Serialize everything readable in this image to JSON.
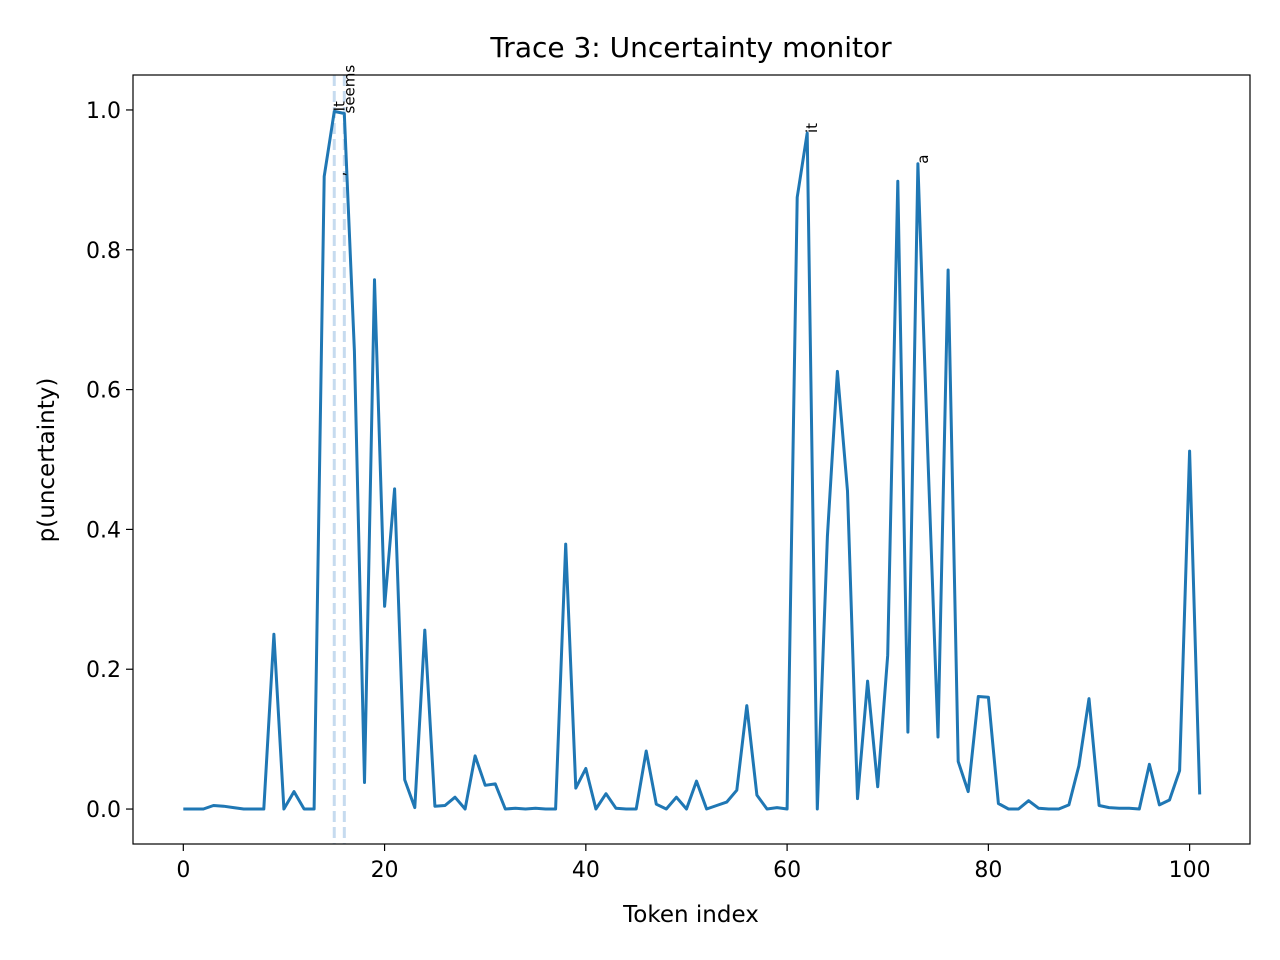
{
  "chart_data": {
    "type": "line",
    "title": "Trace 3: Uncertainty monitor",
    "xlabel": "Token index",
    "ylabel": "p(uncertainty)",
    "xlim": [
      -5,
      106
    ],
    "ylim": [
      -0.05,
      1.05
    ],
    "xticks": [
      0,
      20,
      40,
      60,
      80,
      100
    ],
    "yticks": [
      0.0,
      0.2,
      0.4,
      0.6,
      0.8,
      1.0
    ],
    "grid": false,
    "line_color": "#1f77b4",
    "marker_color": "#c6dbef",
    "series": [
      {
        "x": [
          0,
          1,
          2,
          3,
          4,
          5,
          6,
          7,
          8,
          9,
          10,
          11,
          12,
          13,
          14,
          15,
          16,
          17,
          18,
          19,
          20,
          21,
          22,
          23,
          24,
          25,
          26,
          27,
          28,
          29,
          30,
          31,
          32,
          33,
          34,
          35,
          36,
          37,
          38,
          39,
          40,
          41,
          42,
          43,
          44,
          45,
          46,
          47,
          48,
          49,
          50,
          51,
          52,
          53,
          54,
          55,
          56,
          57,
          58,
          59,
          60,
          61,
          62,
          63,
          64,
          65,
          66,
          67,
          68,
          69,
          70,
          71,
          72,
          73,
          74,
          75,
          76,
          77,
          78,
          79,
          80,
          81,
          82,
          83,
          84,
          85,
          86,
          87,
          88,
          89,
          90,
          91,
          92,
          93,
          94,
          95,
          96,
          97,
          98,
          99,
          100,
          101
        ],
        "values": [
          0.0,
          0.0,
          0.0,
          0.005,
          0.004,
          0.002,
          0.0,
          0.0,
          0.0,
          0.25,
          0.0,
          0.025,
          0.0,
          0.0,
          0.905,
          0.998,
          0.995,
          0.655,
          0.038,
          0.757,
          0.29,
          0.458,
          0.042,
          0.002,
          0.256,
          0.004,
          0.005,
          0.017,
          0.0,
          0.076,
          0.034,
          0.036,
          0.0,
          0.001,
          0.0,
          0.001,
          0.0,
          0.0,
          0.379,
          0.03,
          0.058,
          0.0,
          0.022,
          0.001,
          0.0,
          0.0,
          0.083,
          0.007,
          0.0,
          0.017,
          0.0,
          0.04,
          0.0,
          0.005,
          0.01,
          0.027,
          0.148,
          0.02,
          0.0,
          0.002,
          0.0,
          0.875,
          0.967,
          0.0,
          0.39,
          0.626,
          0.455,
          0.015,
          0.183,
          0.032,
          0.22,
          0.898,
          0.11,
          0.923,
          0.5,
          0.103,
          0.771,
          0.068,
          0.025,
          0.161,
          0.16,
          0.008,
          0.0,
          0.0,
          0.012,
          0.001,
          0.0,
          0.0,
          0.006,
          0.062,
          0.158,
          0.005,
          0.002,
          0.001,
          0.001,
          0.0,
          0.064,
          0.006,
          0.013,
          0.055,
          0.512,
          0.021
        ]
      }
    ],
    "markers_x": [
      15,
      16
    ],
    "annotations": [
      {
        "x": 15,
        "y": 0.905,
        "text": ","
      },
      {
        "x": 15,
        "y": 0.998,
        "text": "It"
      },
      {
        "x": 16,
        "y": 0.995,
        "text": "seems"
      },
      {
        "x": 62,
        "y": 0.967,
        "text": "it"
      },
      {
        "x": 73,
        "y": 0.923,
        "text": "a"
      }
    ]
  }
}
